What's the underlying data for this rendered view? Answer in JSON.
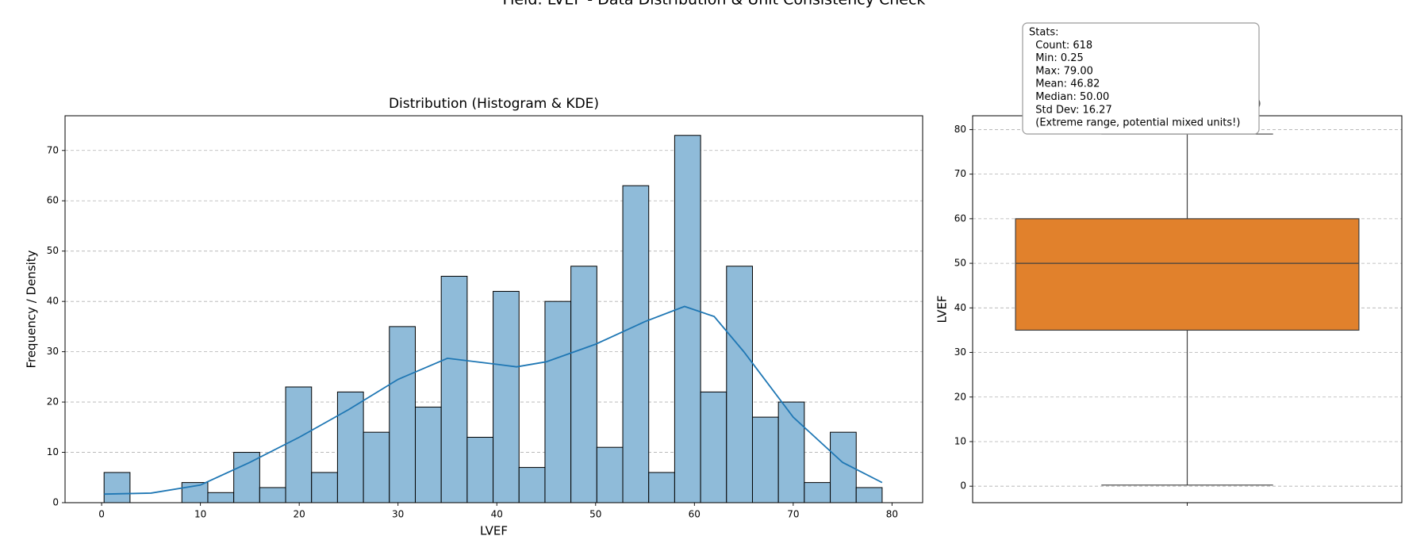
{
  "title": "Field: LVEF - Data Distribution & Unit Consistency Check",
  "chart_data": [
    {
      "type": "histogram",
      "title": "Distribution (Histogram & KDE)",
      "xlabel": "LVEF",
      "ylabel": "Frequency / Density",
      "bins": [
        0.25,
        2.875,
        5.5,
        8.125,
        10.75,
        13.375,
        16,
        18.625,
        21.25,
        23.875,
        26.5,
        29.125,
        31.75,
        34.375,
        37,
        39.625,
        42.25,
        44.875,
        47.5,
        50.125,
        52.75,
        55.375,
        58,
        60.625,
        63.25,
        65.875,
        68.5,
        71.125,
        73.75,
        76.375,
        79
      ],
      "counts": [
        6,
        0,
        0,
        4,
        2,
        10,
        3,
        23,
        6,
        22,
        14,
        35,
        19,
        45,
        13,
        42,
        7,
        40,
        47,
        11,
        63,
        6,
        73,
        22,
        47,
        17,
        20,
        4,
        14,
        3
      ],
      "color": "#8fbbd9",
      "kde": {
        "x": [
          0.25,
          5,
          10,
          15,
          20,
          25,
          30,
          35,
          40,
          42,
          45,
          50,
          55,
          59,
          62,
          65,
          70,
          75,
          79
        ],
        "values": [
          1.7,
          1.9,
          3.5,
          8,
          13,
          18.5,
          24.5,
          28.7,
          27.5,
          27,
          28,
          31.5,
          36,
          39,
          37,
          30,
          17,
          8,
          4
        ],
        "color": "#1f77b4"
      },
      "xlim": [
        -3.7,
        83.1
      ],
      "xticks": [
        0,
        10,
        20,
        30,
        40,
        50,
        60,
        70,
        80
      ],
      "ylim": [
        0,
        76.9
      ],
      "yticks": [
        0,
        10,
        20,
        30,
        40,
        50,
        60,
        70
      ],
      "grid": "y"
    },
    {
      "type": "box",
      "title": "Distribution (Box Plot)",
      "ylabel": "LVEF",
      "whisker_low": 0.25,
      "q1": 35,
      "median": 50,
      "q3": 60,
      "whisker_high": 79,
      "color": "#e1812c",
      "ylim": [
        -3.7,
        83.1
      ],
      "yticks": [
        0,
        10,
        20,
        30,
        40,
        50,
        60,
        70,
        80
      ],
      "grid": "y",
      "annotation": [
        "Stats:",
        "  Count: 618",
        "  Min: 0.25",
        "  Max: 79.00",
        "  Mean: 46.82",
        "  Median: 50.00",
        "  Std Dev: 16.27",
        "  (Extreme range, potential mixed units!)"
      ]
    }
  ]
}
